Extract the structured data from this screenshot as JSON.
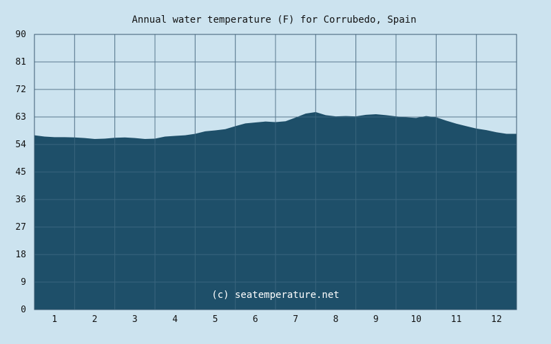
{
  "chart_data": {
    "type": "area",
    "title": "Annual water temperature (F) for Corrubedo, Spain",
    "xlabel": "",
    "ylabel": "",
    "x_ticks": [
      "1",
      "2",
      "3",
      "4",
      "5",
      "6",
      "7",
      "8",
      "9",
      "10",
      "11",
      "12"
    ],
    "y_ticks": [
      "90",
      "81",
      "72",
      "63",
      "54",
      "45",
      "36",
      "27",
      "18",
      "9",
      "0"
    ],
    "ylim": [
      0,
      90
    ],
    "xlim": [
      0.5,
      12.5
    ],
    "grid": true,
    "watermark": "(c) seatemperature.net",
    "colors": {
      "background": "#cce3ef",
      "plot_background": "#cce3ef",
      "fill": "#1e4f69",
      "grid": "#4a6a80",
      "axis": "#3a5a70",
      "text": "#111111",
      "watermark": "#ffffff"
    },
    "series": [
      {
        "x": [
          0.5,
          0.75,
          1.0,
          1.25,
          1.5,
          1.75,
          2.0,
          2.25,
          2.5,
          2.75,
          3.0,
          3.25,
          3.5,
          3.75,
          4.0,
          4.25,
          4.5,
          4.75,
          5.0,
          5.25,
          5.5,
          5.75,
          6.0,
          6.25,
          6.5,
          6.75,
          7.0,
          7.25,
          7.5,
          7.75,
          8.0,
          8.25,
          8.5,
          8.75,
          9.0,
          9.25,
          9.5,
          9.75,
          10.0,
          10.25,
          10.5,
          10.75,
          11.0,
          11.25,
          11.5,
          11.75,
          12.0,
          12.25,
          12.5
        ],
        "values": [
          57.0,
          56.6,
          56.4,
          56.4,
          56.3,
          56.1,
          55.8,
          55.9,
          56.2,
          56.3,
          56.1,
          55.8,
          55.9,
          56.6,
          56.8,
          57.0,
          57.5,
          58.3,
          58.6,
          59.0,
          60.0,
          60.9,
          61.2,
          61.5,
          61.3,
          61.6,
          62.8,
          64.1,
          64.6,
          63.6,
          63.2,
          63.3,
          63.2,
          63.7,
          63.9,
          63.6,
          63.2,
          62.9,
          62.7,
          63.3,
          62.9,
          61.8,
          60.8,
          60.0,
          59.2,
          58.7,
          58.0,
          57.5,
          57.5
        ]
      }
    ]
  }
}
